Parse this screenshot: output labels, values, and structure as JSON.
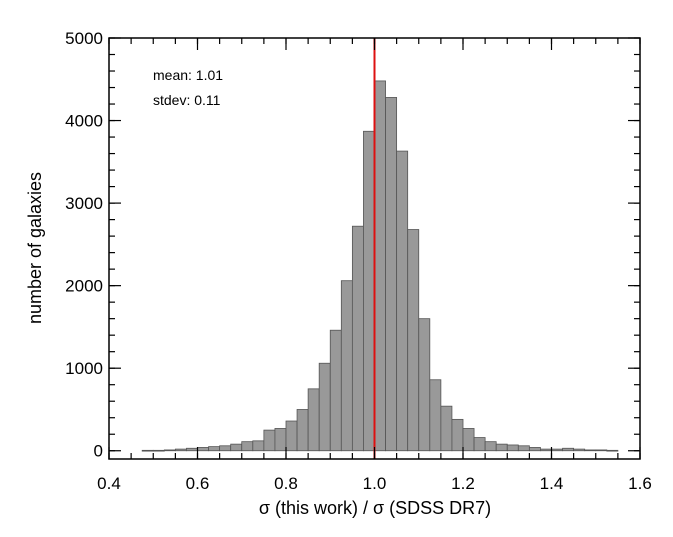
{
  "chart_data": {
    "type": "bar",
    "xlabel": "σ (this work) / σ (SDSS DR7)",
    "ylabel": "number of galaxies",
    "xlim": [
      0.4,
      1.6
    ],
    "ylim": [
      -100,
      5000
    ],
    "x_ticks": [
      "0.4",
      "0.6",
      "0.8",
      "1.0",
      "1.2",
      "1.4",
      "1.6"
    ],
    "y_ticks": [
      "0",
      "1000",
      "2000",
      "3000",
      "4000",
      "5000"
    ],
    "annotations": [
      "mean: 1.01",
      "stdev: 0.11"
    ],
    "reference_line_x": 1.0,
    "bar_color": "#999999",
    "line_color": "#dd1111",
    "bin_width": 0.025,
    "bin_starts": [
      0.475,
      0.5,
      0.525,
      0.55,
      0.575,
      0.6,
      0.625,
      0.65,
      0.675,
      0.7,
      0.725,
      0.75,
      0.775,
      0.8,
      0.825,
      0.85,
      0.875,
      0.9,
      0.925,
      0.95,
      0.975,
      1.0,
      1.025,
      1.05,
      1.075,
      1.1,
      1.125,
      1.15,
      1.175,
      1.2,
      1.225,
      1.25,
      1.275,
      1.3,
      1.325,
      1.35,
      1.375,
      1.4,
      1.425,
      1.45,
      1.475,
      1.5,
      1.525
    ],
    "values": [
      5,
      5,
      10,
      20,
      30,
      40,
      50,
      60,
      80,
      110,
      120,
      250,
      270,
      360,
      500,
      750,
      1060,
      1460,
      2060,
      2720,
      3870,
      4480,
      4280,
      3630,
      2680,
      1600,
      860,
      540,
      380,
      270,
      160,
      110,
      80,
      70,
      60,
      40,
      20,
      20,
      30,
      20,
      10,
      10,
      5
    ]
  }
}
